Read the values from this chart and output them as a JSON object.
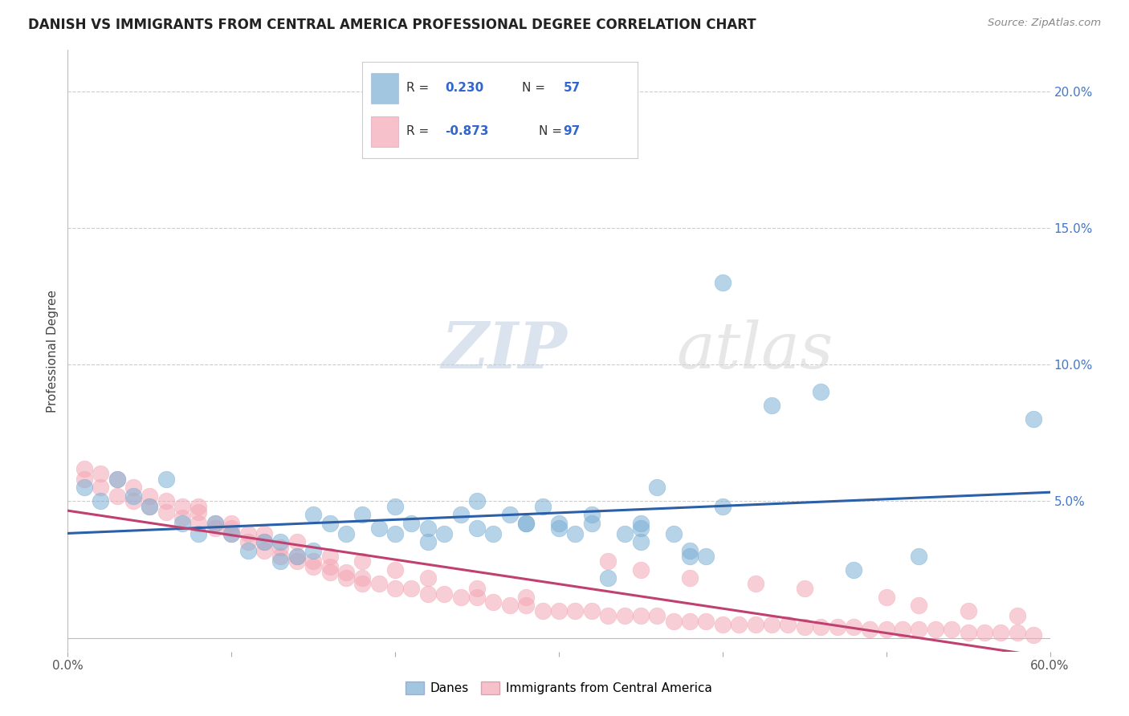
{
  "title": "DANISH VS IMMIGRANTS FROM CENTRAL AMERICA PROFESSIONAL DEGREE CORRELATION CHART",
  "source": "Source: ZipAtlas.com",
  "ylabel": "Professional Degree",
  "xlim": [
    0.0,
    0.6
  ],
  "ylim": [
    -0.005,
    0.215
  ],
  "color_danes": "#7BAFD4",
  "color_immigrants": "#F4A7B5",
  "color_line_danes": "#2B5FA8",
  "color_line_immigrants": "#C04070",
  "background_color": "#FFFFFF",
  "danes_x": [
    0.01,
    0.02,
    0.03,
    0.04,
    0.05,
    0.06,
    0.07,
    0.08,
    0.09,
    0.1,
    0.11,
    0.12,
    0.13,
    0.14,
    0.15,
    0.16,
    0.17,
    0.18,
    0.19,
    0.2,
    0.21,
    0.22,
    0.23,
    0.24,
    0.25,
    0.26,
    0.27,
    0.28,
    0.29,
    0.3,
    0.31,
    0.32,
    0.33,
    0.34,
    0.35,
    0.36,
    0.37,
    0.38,
    0.39,
    0.4,
    0.13,
    0.15,
    0.2,
    0.22,
    0.25,
    0.28,
    0.3,
    0.32,
    0.35,
    0.35,
    0.38,
    0.4,
    0.43,
    0.46,
    0.48,
    0.52,
    0.59
  ],
  "danes_y": [
    0.055,
    0.05,
    0.058,
    0.052,
    0.048,
    0.058,
    0.042,
    0.038,
    0.042,
    0.038,
    0.032,
    0.035,
    0.028,
    0.03,
    0.032,
    0.042,
    0.038,
    0.045,
    0.04,
    0.038,
    0.042,
    0.04,
    0.038,
    0.045,
    0.04,
    0.038,
    0.045,
    0.042,
    0.048,
    0.042,
    0.038,
    0.042,
    0.022,
    0.038,
    0.04,
    0.055,
    0.038,
    0.032,
    0.03,
    0.048,
    0.035,
    0.045,
    0.048,
    0.035,
    0.05,
    0.042,
    0.04,
    0.045,
    0.042,
    0.035,
    0.03,
    0.13,
    0.085,
    0.09,
    0.025,
    0.03,
    0.08
  ],
  "immigrants_x": [
    0.01,
    0.01,
    0.02,
    0.02,
    0.03,
    0.03,
    0.04,
    0.04,
    0.05,
    0.05,
    0.06,
    0.06,
    0.07,
    0.07,
    0.08,
    0.08,
    0.09,
    0.09,
    0.1,
    0.1,
    0.11,
    0.11,
    0.12,
    0.12,
    0.13,
    0.13,
    0.14,
    0.14,
    0.15,
    0.15,
    0.16,
    0.16,
    0.17,
    0.17,
    0.18,
    0.18,
    0.19,
    0.2,
    0.21,
    0.22,
    0.23,
    0.24,
    0.25,
    0.26,
    0.27,
    0.28,
    0.29,
    0.3,
    0.31,
    0.32,
    0.33,
    0.34,
    0.35,
    0.36,
    0.37,
    0.38,
    0.39,
    0.4,
    0.41,
    0.42,
    0.43,
    0.44,
    0.45,
    0.46,
    0.47,
    0.48,
    0.49,
    0.5,
    0.51,
    0.52,
    0.53,
    0.54,
    0.55,
    0.56,
    0.57,
    0.58,
    0.59,
    0.33,
    0.35,
    0.38,
    0.42,
    0.45,
    0.5,
    0.52,
    0.55,
    0.58,
    0.08,
    0.1,
    0.12,
    0.14,
    0.16,
    0.18,
    0.2,
    0.22,
    0.25,
    0.28
  ],
  "immigrants_y": [
    0.062,
    0.058,
    0.06,
    0.055,
    0.058,
    0.052,
    0.055,
    0.05,
    0.052,
    0.048,
    0.05,
    0.046,
    0.048,
    0.044,
    0.046,
    0.042,
    0.042,
    0.04,
    0.04,
    0.038,
    0.038,
    0.035,
    0.035,
    0.032,
    0.033,
    0.03,
    0.03,
    0.028,
    0.028,
    0.026,
    0.026,
    0.024,
    0.024,
    0.022,
    0.022,
    0.02,
    0.02,
    0.018,
    0.018,
    0.016,
    0.016,
    0.015,
    0.015,
    0.013,
    0.012,
    0.012,
    0.01,
    0.01,
    0.01,
    0.01,
    0.008,
    0.008,
    0.008,
    0.008,
    0.006,
    0.006,
    0.006,
    0.005,
    0.005,
    0.005,
    0.005,
    0.005,
    0.004,
    0.004,
    0.004,
    0.004,
    0.003,
    0.003,
    0.003,
    0.003,
    0.003,
    0.003,
    0.002,
    0.002,
    0.002,
    0.002,
    0.001,
    0.028,
    0.025,
    0.022,
    0.02,
    0.018,
    0.015,
    0.012,
    0.01,
    0.008,
    0.048,
    0.042,
    0.038,
    0.035,
    0.03,
    0.028,
    0.025,
    0.022,
    0.018,
    0.015
  ]
}
